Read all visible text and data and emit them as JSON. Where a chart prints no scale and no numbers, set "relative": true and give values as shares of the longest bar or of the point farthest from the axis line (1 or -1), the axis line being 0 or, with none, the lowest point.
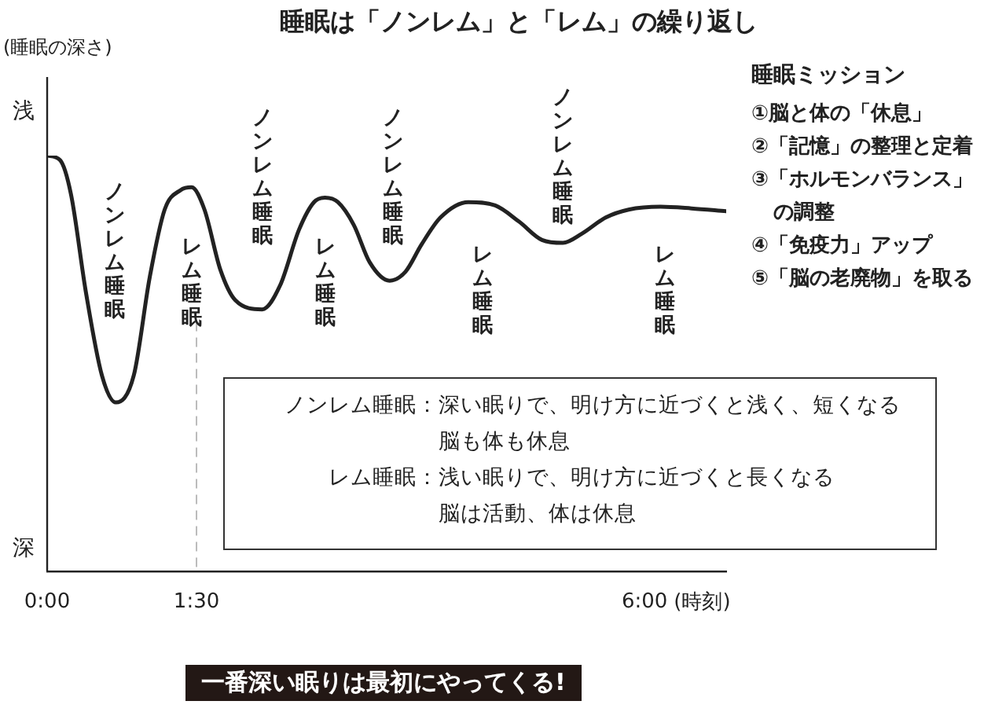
{
  "chart_data": {
    "type": "line",
    "title": "睡眠は「ノンレム」と「レム」の繰り返し",
    "xlabel": "(時刻)",
    "relative": true,
    "x": [
      0,
      0.13,
      0.24,
      0.39,
      0.55,
      0.69,
      0.87,
      1.03,
      1.18,
      1.34,
      1.45,
      1.58,
      1.74,
      1.89,
      2.16,
      2.34,
      2.53,
      2.68,
      2.79,
      2.92,
      3.08,
      3.24,
      3.44,
      3.6,
      3.76,
      3.95,
      4.23,
      4.5,
      4.74,
      4.97,
      5.18,
      5.37,
      5.61,
      5.84,
      6.16,
      6.47,
      6.82
    ],
    "series": [
      {
        "color": "#222222",
        "values": [
          1.0,
          0.989,
          0.906,
          0.67,
          0.471,
          0.406,
          0.471,
          0.707,
          0.87,
          0.917,
          0.924,
          0.87,
          0.725,
          0.652,
          0.63,
          0.688,
          0.822,
          0.888,
          0.899,
          0.888,
          0.833,
          0.743,
          0.699,
          0.721,
          0.786,
          0.851,
          0.888,
          0.88,
          0.841,
          0.797,
          0.79,
          0.812,
          0.851,
          0.87,
          0.877,
          0.873,
          0.866
        ]
      }
    ],
    "xlim": [
      0,
      6.82
    ],
    "xticks": [
      {
        "value": 0,
        "label": "0:00"
      },
      {
        "value": 1.5,
        "label": "1:30"
      },
      {
        "value": 6,
        "label": "6:00"
      }
    ],
    "marker": "none",
    "line_style": "solid",
    "ref_lines": [
      {
        "axis": "x",
        "value": 1.5,
        "label": null,
        "color": "#bbbbbb",
        "line_style": "dashed"
      }
    ],
    "annotations": [
      "(睡眠の深さ)",
      "浅",
      "深",
      "ノンレム睡眠",
      "レム睡眠",
      "ノンレム睡眠",
      "レム睡眠",
      "ノンレム睡眠",
      "レム睡眠",
      "ノンレム睡眠",
      "レム睡眠",
      "ノンレム睡眠：深い眠りで、明け方に近づくと浅く、短くなる",
      "脳も体も休息",
      "レム睡眠：浅い眠りで、明け方に近づくと長くなる",
      "脳は活動、体は休息",
      "睡眠ミッション",
      "①脳と体の「休息」",
      "②「記憶」の整理と定着",
      "③「ホルモンバランス」",
      "の調整",
      "④「免疫力」アップ",
      "⑤「脳の老廃物」を取る",
      "一番深い眠りは最初にやってくる!"
    ]
  }
}
